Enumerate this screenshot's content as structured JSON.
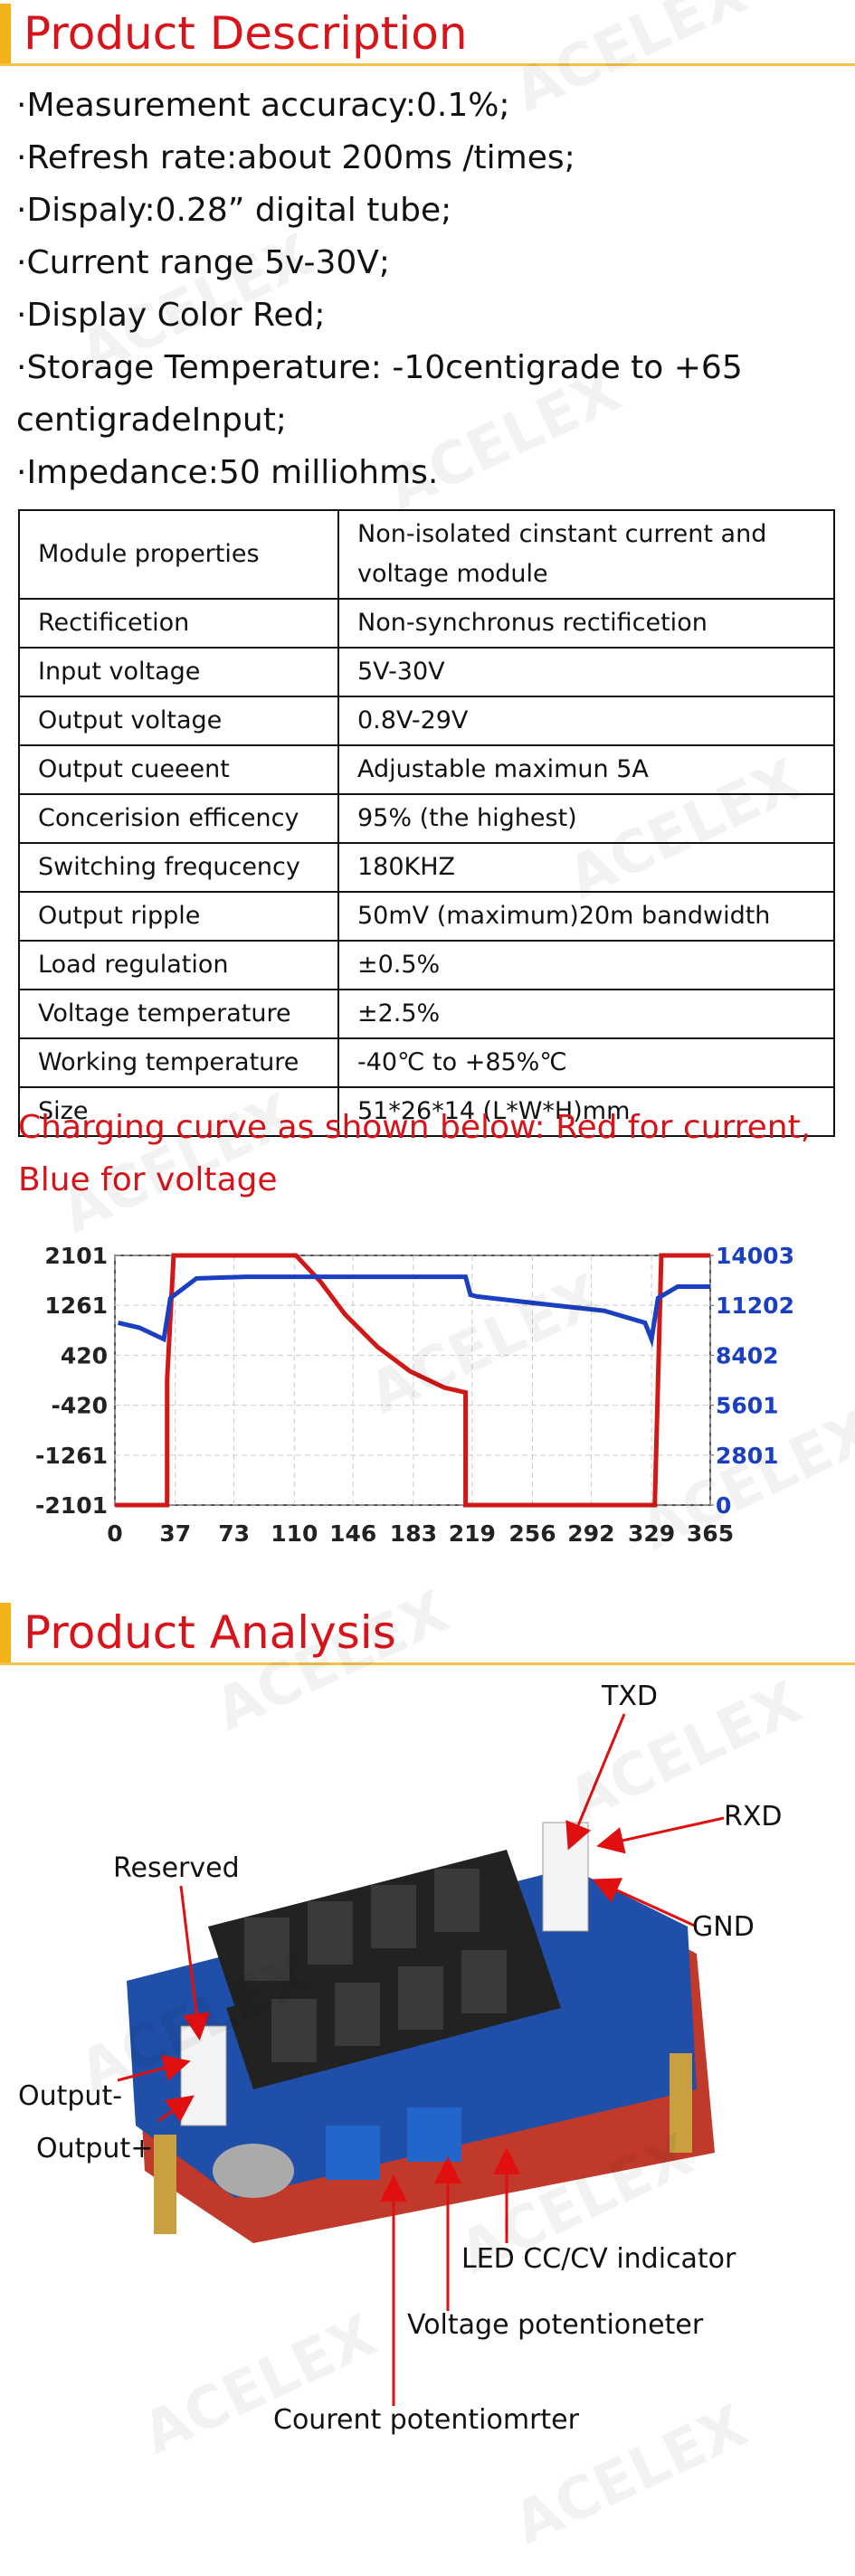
{
  "watermark": "ACELEX",
  "section1": {
    "title": "Product Description"
  },
  "bullets": [
    "·Measurement accuracy:0.1%;",
    "·Refresh rate:about 200ms /times;",
    "·Dispaly:0.28” digital tube;",
    "·Current range 5v-30V;",
    "·Display Color Red;",
    "·Storage Temperature: -10centigrade to +65 centigradeInput;",
    "·Impedance:50 milliohms."
  ],
  "table": {
    "rows": [
      [
        "Module properties",
        "Non-isolated cinstant current and voltage module"
      ],
      [
        "Rectificetion",
        "Non-synchronus rectificetion"
      ],
      [
        "Input voltage",
        "5V-30V"
      ],
      [
        "Output voltage",
        "0.8V-29V"
      ],
      [
        "Output cueeent",
        "Adjustable maximun 5A"
      ],
      [
        "Concerision efficency",
        "95% (the highest)"
      ],
      [
        "Switching frequcency",
        "180KHZ"
      ],
      [
        "Output ripple",
        "50mV (maximum)20m bandwidth"
      ],
      [
        "Load regulation",
        "±0.5%"
      ],
      [
        "Voltage temperature",
        "±2.5%"
      ],
      [
        "Working temperature",
        "-40℃ to +85%℃"
      ],
      [
        "Size",
        "51*26*14 (L*W*H)mm"
      ]
    ]
  },
  "caption": "Charging curve as shown below: Red for current, Blue for voltage",
  "chart_data": {
    "type": "line",
    "xlim": [
      0,
      365
    ],
    "xticks": [
      0,
      37,
      73,
      110,
      146,
      183,
      219,
      256,
      292,
      329,
      365
    ],
    "ylim": [
      -2101,
      2101
    ],
    "yticks": [
      2101,
      1261,
      420,
      -420,
      -1261,
      -2101
    ],
    "y2lim": [
      0,
      14003
    ],
    "y2ticks": [
      14003,
      11202,
      8402,
      5601,
      2801,
      0
    ],
    "grid": true,
    "series": [
      {
        "color": "#d01818",
        "x": [
          0,
          32,
          32,
          36,
          111,
          126,
          141,
          161,
          181,
          202,
          215,
          215,
          217,
          331,
          333,
          335,
          365
        ],
        "values": [
          -2101,
          -2101,
          0,
          2101,
          2101,
          1662,
          1112,
          562,
          150,
          -124,
          -206,
          -2101,
          -2101,
          -2101,
          0,
          2101,
          2101
        ]
      },
      {
        "color": "#1a3fc0",
        "axis": "y2",
        "x": [
          2,
          15,
          30,
          34,
          50,
          80,
          150,
          215,
          218,
          222,
          260,
          300,
          325,
          329,
          333,
          345,
          365
        ],
        "values": [
          10226,
          9950,
          9305,
          11608,
          12713,
          12805,
          12805,
          12805,
          11792,
          11700,
          11300,
          10900,
          10226,
          9305,
          11608,
          12253,
          12253
        ]
      }
    ]
  },
  "section2": {
    "title": "Product Analysis"
  },
  "labels": {
    "txd": "TXD",
    "rxd": "RXD",
    "gnd": "GND",
    "reserved": "Reserved",
    "output_minus": "Output-",
    "output_plus": "Output+",
    "led": "LED CC/CV indicator",
    "voltage_pot": "Voltage potentioneter",
    "current_pot": "Courent potentiomrter"
  }
}
